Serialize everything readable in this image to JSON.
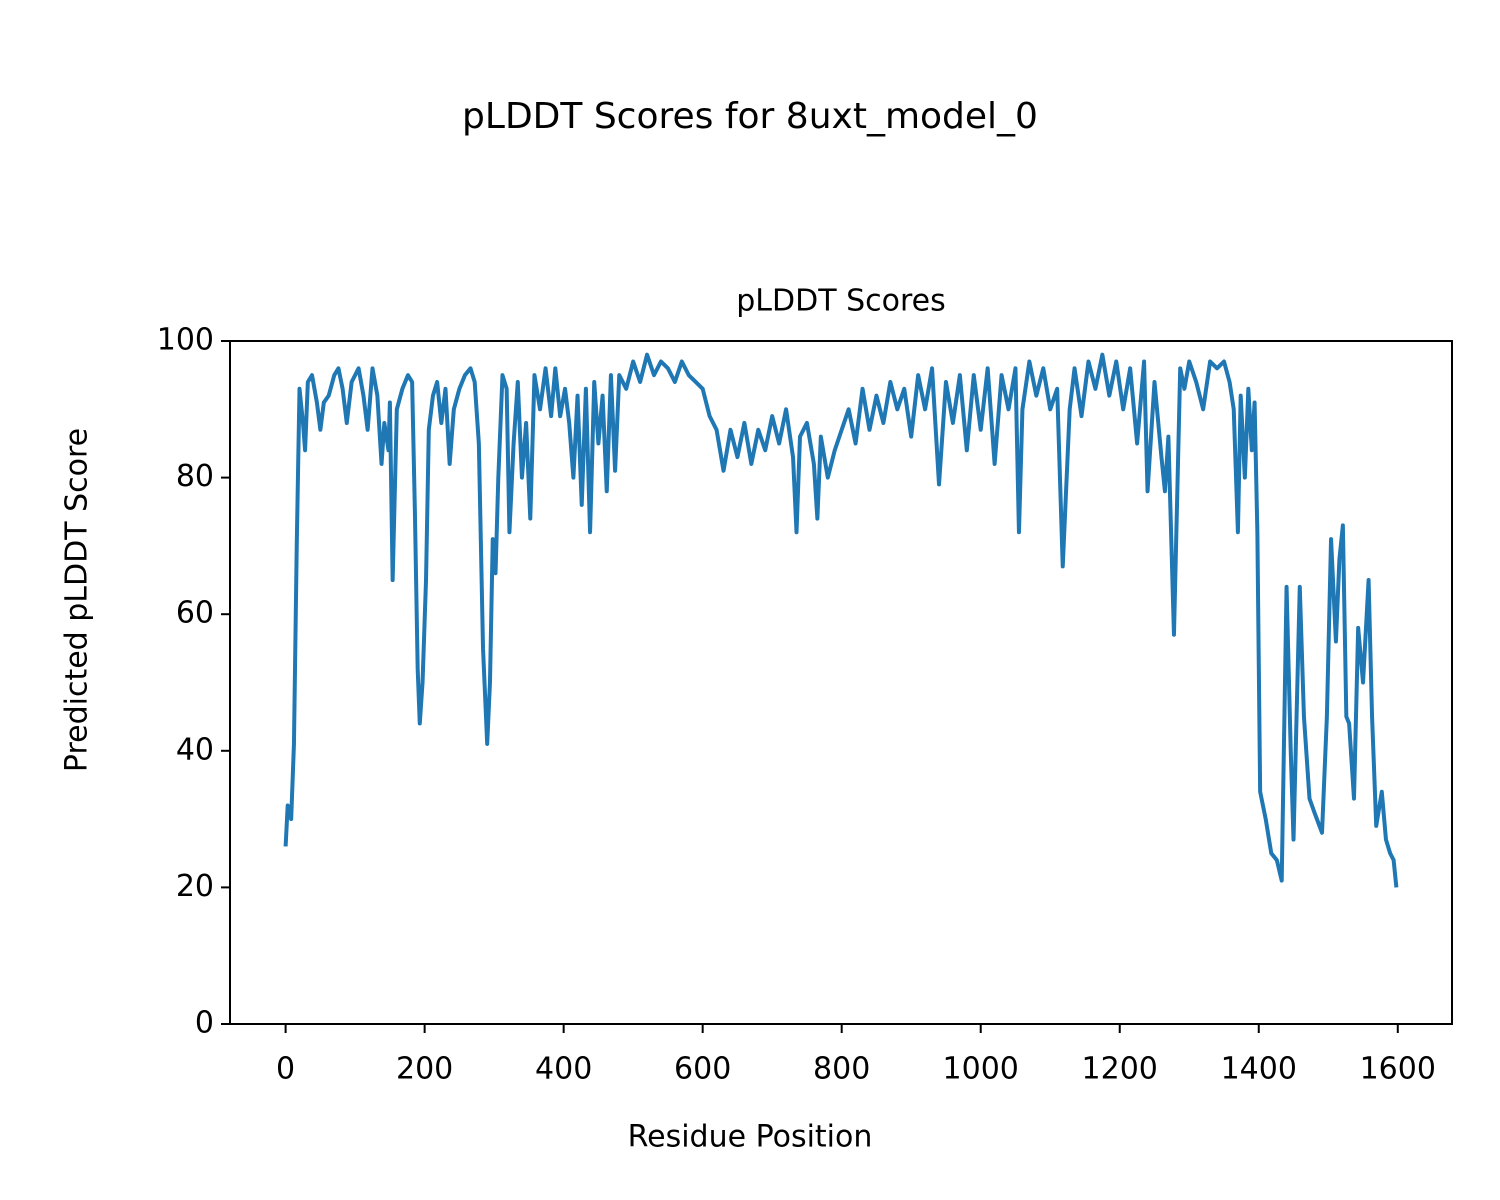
{
  "chart_data": {
    "type": "line",
    "title": "pLDDT Scores for 8uxt_model_0",
    "subtitle": "pLDDT Scores",
    "xlabel": "Residue Position",
    "ylabel": "Predicted pLDDT Score",
    "x": [
      0,
      3,
      8,
      12,
      16,
      20,
      25,
      28,
      32,
      38,
      45,
      50,
      55,
      62,
      70,
      76,
      82,
      88,
      95,
      105,
      112,
      118,
      125,
      132,
      138,
      142,
      148,
      150,
      154,
      160,
      168,
      176,
      182,
      186,
      190,
      193,
      197,
      202,
      206,
      212,
      218,
      224,
      230,
      236,
      242,
      250,
      258,
      266,
      272,
      278,
      284,
      290,
      294,
      298,
      302,
      306,
      312,
      318,
      322,
      328,
      334,
      340,
      346,
      352,
      358,
      366,
      374,
      382,
      388,
      395,
      402,
      408,
      414,
      420,
      426,
      432,
      438,
      444,
      450,
      456,
      462,
      468,
      474,
      480,
      490,
      500,
      510,
      520,
      530,
      540,
      550,
      560,
      570,
      580,
      590,
      600,
      610,
      620,
      630,
      640,
      650,
      660,
      670,
      680,
      690,
      700,
      710,
      720,
      730,
      735,
      740,
      750,
      760,
      765,
      770,
      780,
      790,
      800,
      810,
      820,
      830,
      840,
      850,
      860,
      870,
      880,
      890,
      900,
      910,
      920,
      930,
      940,
      950,
      960,
      970,
      980,
      990,
      1000,
      1010,
      1020,
      1030,
      1040,
      1050,
      1055,
      1060,
      1070,
      1080,
      1090,
      1100,
      1110,
      1118,
      1128,
      1135,
      1145,
      1155,
      1165,
      1175,
      1185,
      1195,
      1205,
      1215,
      1225,
      1235,
      1240,
      1250,
      1260,
      1265,
      1270,
      1278,
      1287,
      1293,
      1300,
      1310,
      1320,
      1330,
      1340,
      1350,
      1358,
      1364,
      1370,
      1374,
      1380,
      1385,
      1390,
      1394,
      1398,
      1402,
      1410,
      1418,
      1426,
      1433,
      1440,
      1446,
      1450,
      1459,
      1465,
      1473,
      1480,
      1491,
      1498,
      1504,
      1511,
      1516,
      1521,
      1526,
      1530,
      1537,
      1543,
      1550,
      1558,
      1563,
      1569,
      1577,
      1583,
      1589,
      1594,
      1598
    ],
    "series": [
      {
        "name": "pLDDT",
        "color": "#1f77b4",
        "values": [
          26,
          32,
          30,
          41,
          70,
          93,
          88,
          84,
          94,
          95,
          91,
          87,
          91,
          92,
          95,
          96,
          93,
          88,
          94,
          96,
          92,
          87,
          96,
          92,
          82,
          88,
          84,
          91,
          65,
          90,
          93,
          95,
          94,
          75,
          52,
          44,
          50,
          65,
          87,
          92,
          94,
          88,
          93,
          82,
          90,
          93,
          95,
          96,
          94,
          85,
          55,
          41,
          50,
          71,
          66,
          80,
          95,
          93,
          72,
          85,
          94,
          80,
          88,
          74,
          95,
          90,
          96,
          89,
          96,
          89,
          93,
          88,
          80,
          92,
          76,
          93,
          72,
          94,
          85,
          92,
          78,
          95,
          81,
          95,
          93,
          97,
          94,
          98,
          95,
          97,
          96,
          94,
          97,
          95,
          94,
          93,
          89,
          87,
          81,
          87,
          83,
          88,
          82,
          87,
          84,
          89,
          85,
          90,
          83,
          72,
          86,
          88,
          82,
          74,
          86,
          80,
          84,
          87,
          90,
          85,
          93,
          87,
          92,
          88,
          94,
          90,
          93,
          86,
          95,
          90,
          96,
          79,
          94,
          88,
          95,
          84,
          95,
          87,
          96,
          82,
          95,
          90,
          96,
          72,
          90,
          97,
          92,
          96,
          90,
          93,
          67,
          90,
          96,
          89,
          97,
          93,
          98,
          92,
          97,
          90,
          96,
          85,
          97,
          78,
          94,
          83,
          78,
          86,
          57,
          96,
          93,
          97,
          94,
          90,
          97,
          96,
          97,
          94,
          90,
          72,
          92,
          80,
          93,
          84,
          91,
          72,
          34,
          30,
          25,
          24,
          21,
          64,
          40,
          27,
          64,
          45,
          33,
          31,
          28,
          45,
          71,
          56,
          68,
          73,
          45,
          44,
          33,
          58,
          50,
          65,
          45,
          29,
          34,
          27,
          25,
          24,
          20
        ]
      }
    ],
    "xlim": [
      -80,
      1678
    ],
    "ylim": [
      0,
      100
    ],
    "xticks": [
      0,
      200,
      400,
      600,
      800,
      1000,
      1200,
      1400,
      1600
    ],
    "yticks": [
      0,
      20,
      40,
      60,
      80,
      100
    ]
  }
}
